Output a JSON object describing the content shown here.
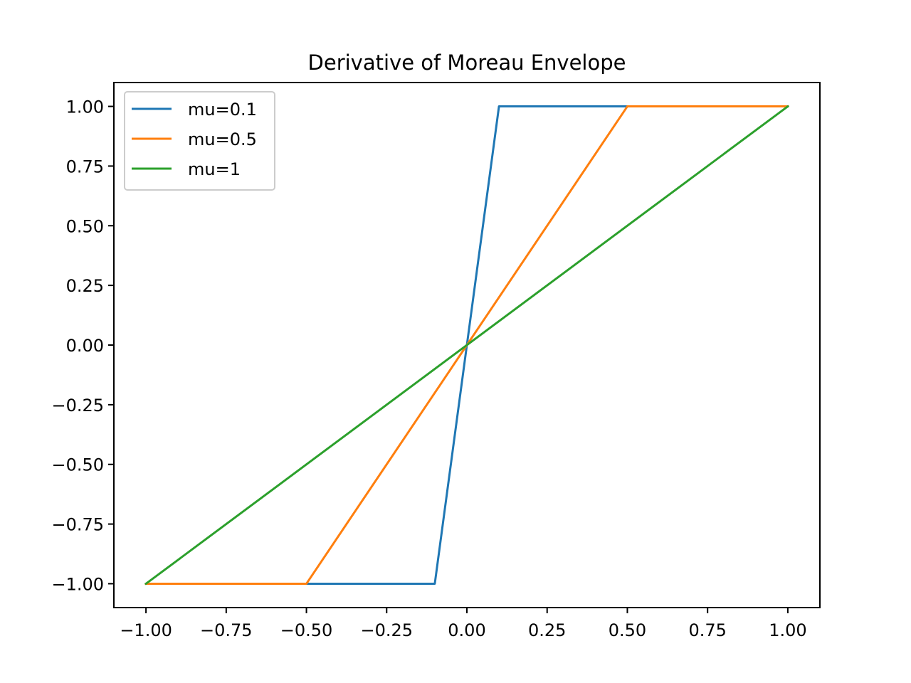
{
  "chart_data": {
    "type": "line",
    "title": "Derivative of Moreau Envelope",
    "xlabel": "",
    "ylabel": "",
    "xlim": [
      -1.1,
      1.1
    ],
    "ylim": [
      -1.1,
      1.1
    ],
    "grid": false,
    "legend_position": "upper-left",
    "x_ticks": [
      -1.0,
      -0.75,
      -0.5,
      -0.25,
      0.0,
      0.25,
      0.5,
      0.75,
      1.0
    ],
    "x_tick_labels": [
      "−1.00",
      "−0.75",
      "−0.50",
      "−0.25",
      "0.00",
      "0.25",
      "0.50",
      "0.75",
      "1.00"
    ],
    "y_ticks": [
      1.0,
      0.75,
      0.5,
      0.25,
      0.0,
      -0.25,
      -0.5,
      -0.75,
      -1.0
    ],
    "y_tick_labels": [
      "1.00",
      "0.75",
      "0.50",
      "0.25",
      "0.00",
      "−0.25",
      "−0.50",
      "−0.75",
      "−1.00"
    ],
    "series": [
      {
        "name": "mu=0.1",
        "color": "#1f77b4",
        "x": [
          -1.0,
          -0.1,
          0.1,
          1.0
        ],
        "y": [
          -1.0,
          -1.0,
          1.0,
          1.0
        ]
      },
      {
        "name": "mu=0.5",
        "color": "#ff7f0e",
        "x": [
          -1.0,
          -0.5,
          0.5,
          1.0
        ],
        "y": [
          -1.0,
          -1.0,
          1.0,
          1.0
        ]
      },
      {
        "name": "mu=1",
        "color": "#2ca02c",
        "x": [
          -1.0,
          1.0
        ],
        "y": [
          -1.0,
          1.0
        ]
      }
    ]
  }
}
